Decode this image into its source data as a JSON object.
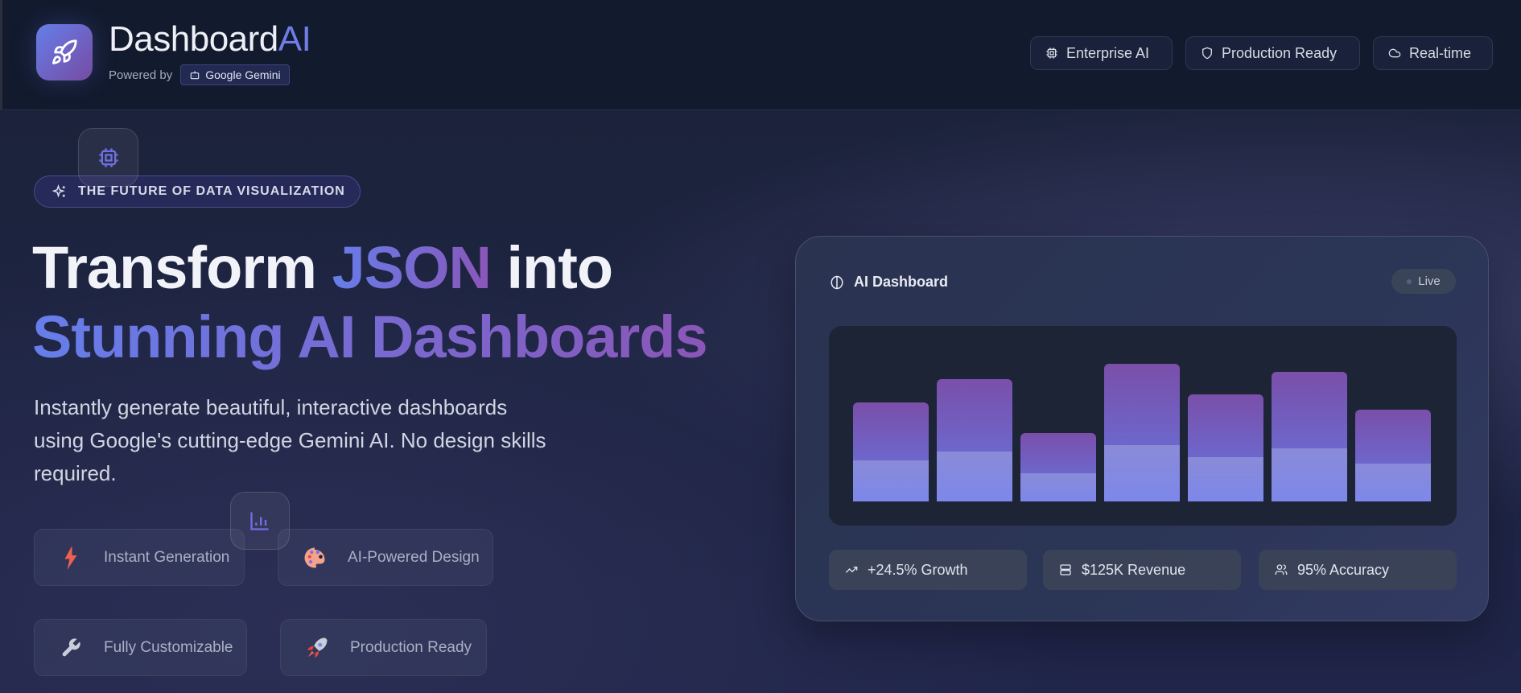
{
  "header": {
    "brand_main": "Dashboard",
    "brand_accent": "AI",
    "powered_by": "Powered by",
    "provider": "Google Gemini",
    "pills": [
      {
        "label": "Enterprise AI",
        "icon": "cpu-icon"
      },
      {
        "label": "Production Ready",
        "icon": "shield-icon"
      },
      {
        "label": "Real-time",
        "icon": "cloud-icon"
      }
    ]
  },
  "hero": {
    "badge": "THE FUTURE OF DATA VISUALIZATION",
    "title_word1": "Transform ",
    "title_accent1": "JSON",
    "title_word2": " into",
    "title_line2": "Stunning AI Dashboards",
    "description": "Instantly generate beautiful, interactive dashboards using Google's cutting-edge Gemini AI. No design skills required.",
    "features": [
      {
        "label": "Instant Generation",
        "icon": "lightning-icon"
      },
      {
        "label": "AI-Powered Design",
        "icon": "palette-icon"
      },
      {
        "label": "Fully Customizable",
        "icon": "wrench-icon"
      },
      {
        "label": "Production Ready",
        "icon": "rocket-icon"
      }
    ]
  },
  "preview": {
    "title": "AI Dashboard",
    "status": "Live",
    "stats": [
      {
        "label": "+24.5% Growth",
        "icon": "trending-up-icon"
      },
      {
        "label": "$125K Revenue",
        "icon": "server-icon"
      },
      {
        "label": "95% Accuracy",
        "icon": "users-icon"
      }
    ]
  },
  "colors": {
    "accent": "#667eea",
    "accent2": "#764ba2",
    "background": "#1b2238"
  },
  "chart_data": {
    "type": "bar",
    "values": [
      65,
      80,
      45,
      90,
      70,
      85,
      60
    ],
    "ylim": [
      0,
      100
    ],
    "grid": false
  }
}
